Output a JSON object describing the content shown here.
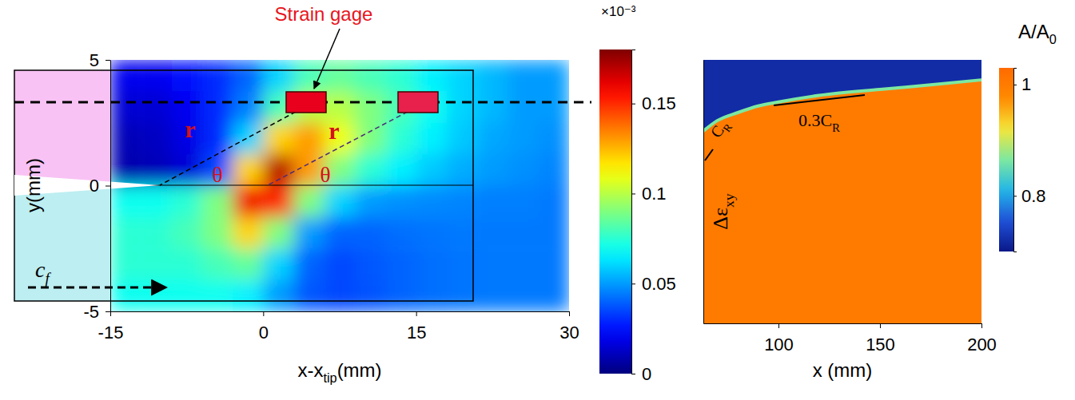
{
  "chart_data": [
    {
      "type": "heatmap",
      "x_label": {
        "text": "x-x",
        "sub": "tip",
        "after": "(mm)"
      },
      "y_label": "y(mm)",
      "xlim": [
        -15,
        30
      ],
      "xticks": [
        -15,
        0,
        15,
        30
      ],
      "ylim": [
        -5,
        5
      ],
      "yticks": [
        -5,
        0,
        5
      ],
      "x_edges": [
        -15,
        -12,
        -9,
        -6,
        -3,
        0,
        3,
        6,
        9,
        12,
        15,
        18,
        21,
        24,
        27,
        30
      ],
      "y_edges": [
        5,
        3.75,
        2.5,
        1.25,
        0,
        -1.25,
        -2.5,
        -3.75,
        -5
      ],
      "cells": [
        [
          0.02,
          0.02,
          0.025,
          0.03,
          0.04,
          0.06,
          0.08,
          0.085,
          0.08,
          0.075,
          0.065,
          0.06,
          0.055,
          0.05,
          0.05
        ],
        [
          0.015,
          0.015,
          0.02,
          0.03,
          0.045,
          0.08,
          0.1,
          0.1,
          0.09,
          0.08,
          0.07,
          0.06,
          0.055,
          0.05,
          0.05
        ],
        [
          0.01,
          0.012,
          0.018,
          0.03,
          0.06,
          0.12,
          0.13,
          0.11,
          0.09,
          0.075,
          0.065,
          0.058,
          0.052,
          0.05,
          0.048
        ],
        [
          0.008,
          0.01,
          0.015,
          0.035,
          0.12,
          0.17,
          0.13,
          0.09,
          0.075,
          0.065,
          0.058,
          0.053,
          0.05,
          0.048,
          0.046
        ],
        [
          0.07,
          0.07,
          0.075,
          0.09,
          0.16,
          0.15,
          0.09,
          0.06,
          0.05,
          0.048,
          0.047,
          0.046,
          0.045,
          0.045,
          0.044
        ],
        [
          0.075,
          0.075,
          0.08,
          0.09,
          0.12,
          0.09,
          0.05,
          0.04,
          0.04,
          0.042,
          0.043,
          0.044,
          0.044,
          0.044,
          0.044
        ],
        [
          0.075,
          0.075,
          0.075,
          0.08,
          0.085,
          0.06,
          0.04,
          0.035,
          0.038,
          0.04,
          0.042,
          0.043,
          0.044,
          0.044,
          0.044
        ],
        [
          0.07,
          0.07,
          0.07,
          0.07,
          0.065,
          0.05,
          0.038,
          0.035,
          0.037,
          0.04,
          0.042,
          0.043,
          0.044,
          0.044,
          0.044
        ]
      ],
      "colorbar": {
        "lim": [
          0,
          0.18
        ],
        "ticks": [
          0,
          0.05,
          0.1,
          0.15
        ],
        "label": "×10⁻³"
      },
      "annotations": {
        "gage": "Strain gage",
        "r": [
          "r",
          "r"
        ],
        "theta": [
          "θ",
          "θ"
        ],
        "speed": {
          "text": "c",
          "sub": "f"
        }
      }
    },
    {
      "type": "heatmap",
      "x_label": "x (mm)",
      "xlim": [
        63,
        200
      ],
      "xticks": [
        100,
        150,
        200
      ],
      "ylim": [
        0,
        1
      ],
      "tick_labels": "x",
      "front": {
        "x": [
          63,
          70,
          80,
          90,
          100,
          120,
          150,
          175,
          200
        ],
        "y": [
          0.73,
          0.77,
          0.8,
          0.825,
          0.84,
          0.865,
          0.888,
          0.905,
          0.924
        ]
      },
      "region_values": {
        "above": 0.72,
        "below": 1
      },
      "colorbar": {
        "lim": [
          0.7,
          1.03
        ],
        "ticks": [
          0.8,
          1
        ],
        "label": {
          "text": "A/A",
          "sub": "0"
        }
      },
      "annotations": [
        {
          "text": "0.3C",
          "sub": "R"
        },
        {
          "text": "C",
          "sub": "R"
        },
        {
          "text": "Δε",
          "sub": "xy"
        }
      ]
    }
  ]
}
